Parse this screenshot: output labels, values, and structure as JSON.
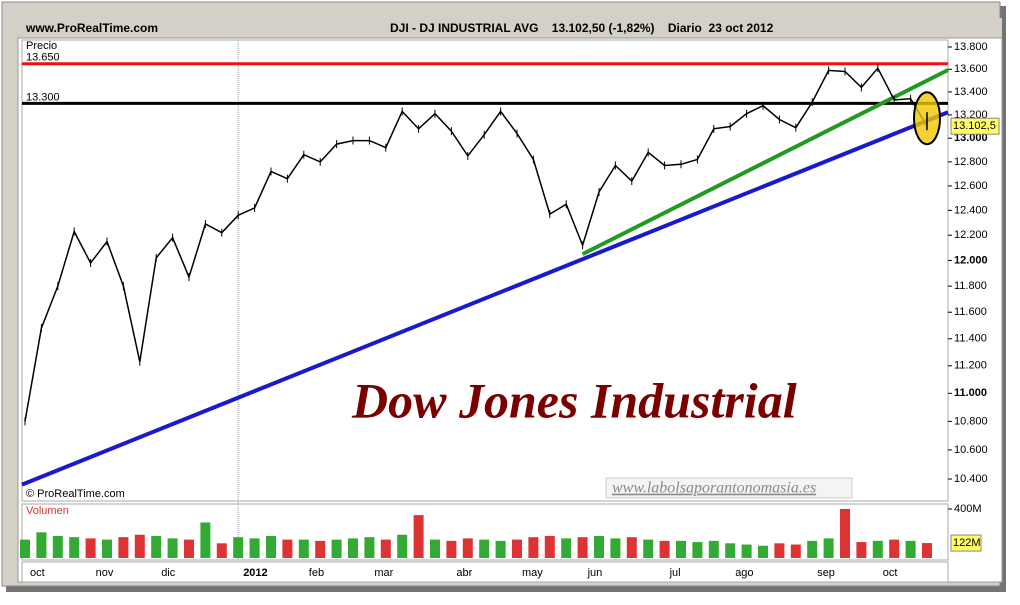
{
  "header": {
    "site": "www.ProRealTime.com",
    "title": "DJI - DJ INDUSTRIAL AVG    13.102,50 (-1,82%)    Diario  23 oct 2012"
  },
  "chart_data": [
    {
      "type": "line",
      "name": "Precio",
      "color": "#000000",
      "log_scale": true,
      "categories": [
        "oct",
        null,
        null,
        null,
        "nov",
        null,
        null,
        null,
        "dic",
        null,
        null,
        null,
        null,
        "2012",
        null,
        null,
        null,
        "feb",
        null,
        null,
        null,
        "mar",
        null,
        null,
        null,
        null,
        "abr",
        null,
        null,
        null,
        "may",
        null,
        null,
        null,
        "jun",
        null,
        null,
        null,
        null,
        "jul",
        null,
        null,
        null,
        "ago",
        null,
        null,
        null,
        null,
        "sep",
        null,
        null,
        null,
        "oct",
        null,
        null,
        null
      ],
      "values": [
        10800,
        11480,
        11800,
        12230,
        11980,
        12150,
        11800,
        11230,
        12020,
        12180,
        11870,
        12290,
        12220,
        12360,
        12420,
        12720,
        12660,
        12860,
        12800,
        12950,
        12980,
        12980,
        12920,
        13230,
        13080,
        13210,
        13060,
        12850,
        13030,
        13230,
        13040,
        12820,
        12370,
        12450,
        12120,
        12550,
        12770,
        12640,
        12880,
        12770,
        12780,
        12820,
        13080,
        13100,
        13210,
        13280,
        13160,
        13090,
        13310,
        13590,
        13580,
        13440,
        13610,
        13330,
        13340,
        13102.5
      ],
      "last_value_label": "13.102,5",
      "ylim": [
        10400,
        13800
      ],
      "yticks": [
        {
          "value": 13800,
          "label": "13.800"
        },
        {
          "value": 13600,
          "label": "13.600"
        },
        {
          "value": 13400,
          "label": "13.400"
        },
        {
          "value": 13200,
          "label": "13.200"
        },
        {
          "value": 13000,
          "label": "13.000"
        },
        {
          "value": 12800,
          "label": "12.800"
        },
        {
          "value": 12600,
          "label": "12.600"
        },
        {
          "value": 12400,
          "label": "12.400"
        },
        {
          "value": 12200,
          "label": "12.200"
        },
        {
          "value": 12000,
          "label": "12.000"
        },
        {
          "value": 11800,
          "label": "11.800"
        },
        {
          "value": 11600,
          "label": "11.600"
        },
        {
          "value": 11400,
          "label": "11.400"
        },
        {
          "value": 11200,
          "label": "11.200"
        },
        {
          "value": 11000,
          "label": "11.000"
        },
        {
          "value": 10800,
          "label": "10.800"
        },
        {
          "value": 10600,
          "label": "10.600"
        },
        {
          "value": 10400,
          "label": "10.400"
        }
      ],
      "levels": [
        {
          "value": 13650,
          "label": "13.650",
          "color": "#ee1111"
        },
        {
          "value": 13300,
          "label": "13.300",
          "color": "#000000"
        }
      ],
      "trend_lines": [
        {
          "color": "#1a1acc",
          "x": [
            0,
            55
          ],
          "y": [
            10370,
            13150
          ]
        },
        {
          "color": "#229922",
          "x": [
            34,
            55
          ],
          "y": [
            12050,
            13500
          ]
        }
      ],
      "watermark": "Dow Jones Industrial",
      "website": "www.labolsaporantonomasia.es",
      "copyright": "© ProRealTime.com"
    },
    {
      "type": "bar",
      "name": "Volumen",
      "up_color": "#33aa33",
      "down_color": "#dd3333",
      "values": [
        150,
        210,
        180,
        170,
        160,
        150,
        170,
        190,
        180,
        160,
        150,
        290,
        120,
        170,
        160,
        180,
        150,
        150,
        140,
        150,
        160,
        170,
        150,
        190,
        350,
        150,
        140,
        160,
        150,
        140,
        150,
        170,
        180,
        160,
        170,
        180,
        160,
        170,
        150,
        140,
        140,
        130,
        140,
        120,
        110,
        100,
        120,
        110,
        140,
        160,
        400,
        130,
        140,
        150,
        140,
        122
      ],
      "last_value_label": "122M",
      "ylim": [
        0,
        400
      ],
      "yticks": [
        {
          "value": 400,
          "label": "400M"
        }
      ]
    }
  ]
}
